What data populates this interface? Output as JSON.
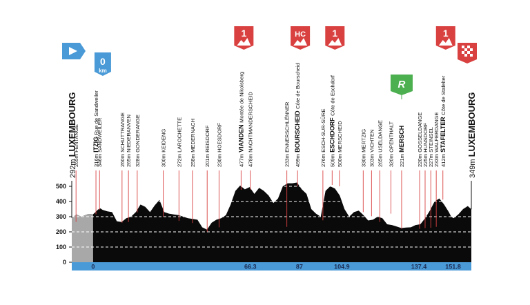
{
  "chart_data": {
    "type": "area",
    "title": "",
    "xlabel": "",
    "ylabel": "",
    "ylim": [
      0,
      550
    ],
    "xlim": [
      -9,
      159.5
    ],
    "yticks": [
      0,
      100,
      200,
      300,
      400,
      500
    ],
    "xticks": [
      "0",
      "66.3",
      "87",
      "104.9",
      "137.4",
      "151.8"
    ],
    "xtick_values": [
      0,
      66.3,
      87,
      104.9,
      137.4,
      151.8
    ],
    "neutral_zone_km": [
      -9,
      0
    ],
    "colors": {
      "profile": "#0a0a0a",
      "neutral": "#a8a8a8",
      "axis_bar": "#4a9ad7",
      "marker_line": "#d94040",
      "grid_dashes": "#ffffff"
    },
    "profile": {
      "x": [
        -9,
        -7,
        -5,
        -2,
        0,
        1,
        2,
        3,
        4,
        6,
        8,
        10,
        12,
        14,
        16,
        18,
        20,
        22,
        24,
        26,
        28,
        30,
        32,
        34,
        36,
        38,
        40,
        42,
        44,
        46,
        48,
        50,
        52,
        54,
        56,
        58,
        60,
        62,
        64,
        66,
        68,
        70,
        72,
        74,
        76,
        78,
        80,
        82,
        84,
        86,
        88,
        90,
        92,
        94,
        96,
        98,
        100,
        102,
        104,
        106,
        108,
        110,
        112,
        114,
        116,
        118,
        120,
        122,
        124,
        126,
        128,
        130,
        132,
        134,
        136,
        138,
        140,
        142,
        144,
        146,
        148,
        150,
        151,
        152,
        154,
        156,
        158,
        159.5
      ],
      "y": [
        292,
        315,
        300,
        318,
        316,
        330,
        346,
        355,
        345,
        335,
        330,
        270,
        265,
        290,
        300,
        330,
        380,
        365,
        330,
        375,
        410,
        330,
        320,
        315,
        310,
        300,
        290,
        285,
        280,
        230,
        215,
        260,
        280,
        290,
        310,
        380,
        470,
        505,
        480,
        495,
        450,
        490,
        470,
        440,
        390,
        420,
        500,
        520,
        520,
        525,
        480,
        450,
        350,
        320,
        300,
        470,
        500,
        485,
        440,
        350,
        300,
        330,
        340,
        310,
        275,
        280,
        300,
        290,
        250,
        245,
        235,
        225,
        228,
        230,
        245,
        250,
        290,
        340,
        400,
        420,
        380,
        330,
        300,
        290,
        315,
        350,
        370,
        349
      ]
    },
    "markers": [
      {
        "label_bold": "",
        "label": "FENTANGE",
        "alt": "265m",
        "x": -7.2
      },
      {
        "label_bold": "ITZIG",
        "label": "Rue de Sandweiler",
        "alt": "316m",
        "x": 1.2
      },
      {
        "label_bold": "",
        "label": "SANDWEILER",
        "alt": "346m",
        "x": 2.7
      },
      {
        "label_bold": "",
        "label": "SCHUTTRANGE",
        "alt": "260m",
        "x": 12.2
      },
      {
        "label_bold": "",
        "label": "NIEDERANVEN",
        "alt": "265m",
        "x": 14.9
      },
      {
        "label_bold": "",
        "label": "GONDERANGE",
        "alt": "328m",
        "x": 18.6
      },
      {
        "label_bold": "",
        "label": "KEIDENG",
        "alt": "300m",
        "x": 29.6
      },
      {
        "label_bold": "",
        "label": "LAROCHETTE",
        "alt": "272m",
        "x": 36.2
      },
      {
        "label_bold": "",
        "label": "MEDERNACH",
        "alt": "258m",
        "x": 41.9
      },
      {
        "label_bold": "",
        "label": "REISDORF",
        "alt": "201m",
        "x": 48.1
      },
      {
        "label_bold": "",
        "label": "HOESDORF",
        "alt": "230m",
        "x": 53.1
      },
      {
        "label_bold": "VIANDEN",
        "label": "Montée de Nikolsberg",
        "alt": "477m",
        "x": 62.4
      },
      {
        "label_bold": "",
        "label": "NACHTMANDERSCHEID",
        "alt": "478m",
        "x": 66.3
      },
      {
        "label_bold": "",
        "label": "ENNERSCHLËNNER",
        "alt": "233m",
        "x": 81.7
      },
      {
        "label_bold": "BOURSCHEID",
        "label": "Côte de Bourscheid",
        "alt": "499m",
        "x": 86.2
      },
      {
        "label_bold": "",
        "label": "ESCH-SUR-SÛRE",
        "alt": "276m",
        "x": 96.9
      },
      {
        "label_bold": "ESCHDORF",
        "label": "Côte de Eschdorf",
        "alt": "509m",
        "x": 100.8
      },
      {
        "label_bold": "",
        "label": "MERSCHEID",
        "alt": "500m",
        "x": 103.9
      },
      {
        "label_bold": "",
        "label": "MERTZIG",
        "alt": "330m",
        "x": 113.9
      },
      {
        "label_bold": "",
        "label": "VICHTEN",
        "alt": "303m",
        "x": 117.4
      },
      {
        "label_bold": "",
        "label": "USELDANGE",
        "alt": "265m",
        "x": 120.9
      },
      {
        "label_bold": "",
        "label": "OPENTHALT",
        "alt": "320m",
        "x": 125.6
      },
      {
        "label_bold": "MERSCH",
        "label": "",
        "alt": "221m",
        "x": 130.1
      },
      {
        "label_bold": "",
        "label": "GOSSELDANGE",
        "alt": "220m",
        "x": 137.7
      },
      {
        "label_bold": "",
        "label": "HUNSDORF",
        "alt": "225m",
        "x": 140.0
      },
      {
        "label_bold": "",
        "label": "STEINSEL",
        "alt": "227m",
        "x": 142.4
      },
      {
        "label_bold": "",
        "label": "WALFERDANGE",
        "alt": "233m",
        "x": 144.7
      },
      {
        "label_bold": "STAFELTER",
        "label": "Côte de Stafelter",
        "alt": "412m",
        "x": 147.5
      }
    ],
    "start": {
      "alt": "292m",
      "name": "LUXEMBOURG",
      "x": -9
    },
    "finish": {
      "alt": "349m",
      "name": "LUXEMBOURG",
      "x": 159.5
    },
    "flags": [
      {
        "text": "",
        "kind": "start",
        "x": -9
      },
      {
        "text": "0",
        "sub": "km",
        "kind": "zero",
        "x": 0
      },
      {
        "text": "1",
        "kind": "climb",
        "x": 62.4
      },
      {
        "text": "HC",
        "kind": "climb",
        "x": 86.2
      },
      {
        "text": "1",
        "kind": "climb",
        "x": 100.8
      },
      {
        "text": "R",
        "kind": "feed",
        "x": 130.1
      },
      {
        "text": "1",
        "kind": "climb",
        "x": 147.5
      },
      {
        "text": "",
        "kind": "finish",
        "x": 159.5
      }
    ]
  }
}
